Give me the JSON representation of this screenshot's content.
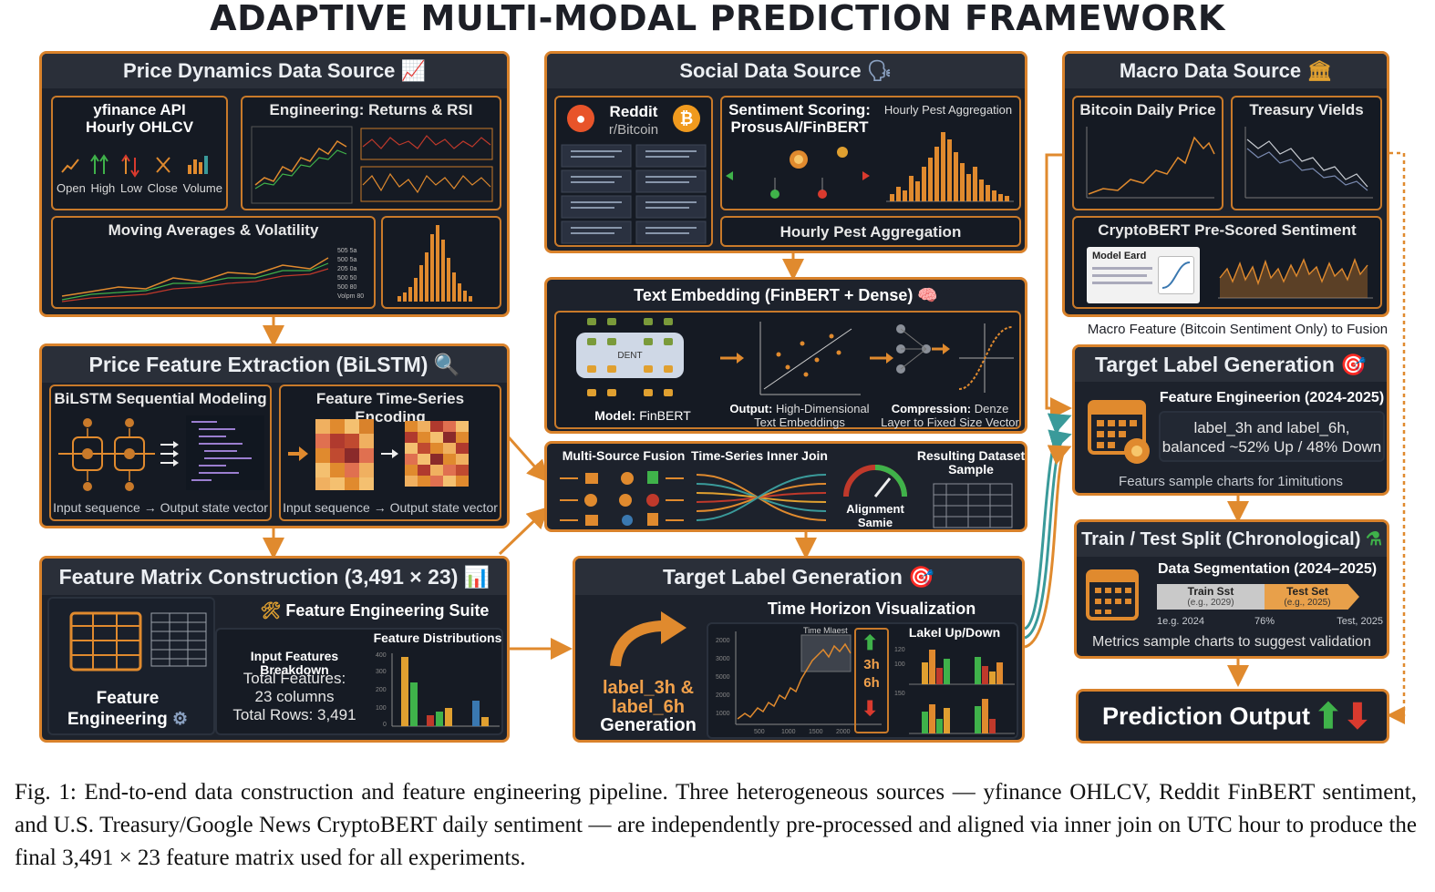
{
  "title": "ADAPTIVE MULTI-MODAL PREDICTION FRAMEWORK",
  "price_source": {
    "title": "Price Dynamics Data Source",
    "icon": "chart-up-icon",
    "yfinance_title": "yfinance API\nHourly OHLCV",
    "ohlcv": [
      "Open",
      "High",
      "Low",
      "Close",
      "Volume"
    ],
    "engineering_title": "Engineering: Returns & RSI",
    "ma_title": "Moving Averages & Volatility"
  },
  "social_source": {
    "title": "Social Data Source",
    "icon": "speaking-head-icon",
    "reddit_title": "Reddit",
    "reddit_sub": "r/Bitcoin",
    "sentiment_title": "Sentiment Scoring:\nProsusAI/FinBERT",
    "hourly_chart_title": "Hourly Pest Aggregation",
    "hourly_bar_label": "Hourly Pest Aggregation"
  },
  "macro_source": {
    "title": "Macro Data Source",
    "icon": "bank-icon",
    "btc_title": "Bitcoin Daily Price",
    "treasury_title": "Treasury Vields",
    "cryptobert_title": "CryptoBERT Pre-Scored Sentiment",
    "model_card": "Model Eard",
    "caption": "Macro Feature (Bitcoin Sentiment Only) to Fusion"
  },
  "text_embedding": {
    "title": "Text Embedding (FinBERT + Dense)",
    "icon": "brain-icon",
    "model_label": "Model:",
    "model_value": "FinBERT",
    "dent": "DENT",
    "output_label": "Output:",
    "output_value": "High-Dimensional Text Embeddings",
    "compression_label": "Compression:",
    "compression_value": "Denze Layer to Fixed Size Vector"
  },
  "fusion": {
    "multi_source": "Multi-Source Fusion",
    "inner_join": "Time-Series Inner Join",
    "alignment": "Alignment\nSamie",
    "dataset_sample": "Resulting Dataset\nSample"
  },
  "price_feature": {
    "title": "Price Feature Extraction (BiLSTM)",
    "icon": "magnifier-icon",
    "bilstm_title": "BiLSTM Sequential Modeling",
    "encoding_title": "Feature Time-Series Encoding",
    "bilstm_caption": "Input sequence → Output state vector",
    "encoding_caption": "Input sequence → Output state vector"
  },
  "feature_matrix": {
    "title": "Feature Matrix Construction (3,491 × 23)",
    "icon": "bar-chart-icon",
    "suite_title": "Feature Engineering Suite",
    "feature_engineering": "Feature\nEngineering",
    "breakdown_title": "Input Features Breakdown",
    "total_features": "Total Features:",
    "columns": "23 columns",
    "total_rows": "Total Rows: 3,491",
    "distributions_title": "Feature Distributions"
  },
  "target_center": {
    "title": "Target Label Generation",
    "icon": "target-icon",
    "label_gen": "label_3h &\nlabel_6h",
    "generation": "Generation",
    "horizon_title": "Time Horizon Visualization",
    "time_mlaest": "Time Mlaest",
    "h3": "3h",
    "h6": "6h",
    "updown_title": "Lakel Up/Down"
  },
  "target_right": {
    "title": "Target Label Generation",
    "icon": "target-icon",
    "engineering_title": "Feature Engineerion (2024-2025)",
    "labels_text": "label_3h and label_6h,\nbalanced ~52% Up / 48% Down",
    "footer": "Featurs sample charts for 1imitutions"
  },
  "split": {
    "title": "Train / Test Split (Chronological)",
    "icon": "flask-icon",
    "segmentation_title": "Data Segmentation (2024–2025)",
    "train_label": "Train Sst",
    "train_sub": "(e.g., 2029)",
    "test_label": "Test Set",
    "test_sub": "(e.g., 2025)",
    "tick_left": "1e.g. 2024",
    "tick_mid": "76%",
    "tick_right": "Test, 2025",
    "footer": "Metrics sample charts to suggest validation"
  },
  "prediction": {
    "title": "Prediction Output",
    "up_icon": "arrow-up-icon",
    "down_icon": "arrow-down-icon"
  },
  "caption": "Fig. 1: End-to-end data construction and feature engineering pipeline. Three heterogeneous sources — yfinance OHLCV, Reddit FinBERT sentiment, and U.S. Treasury/Google News CryptoBERT daily sentiment — are independently pre-processed and aligned via inner join on UTC hour to produce the final 3,491 × 23 feature matrix used for all experiments.",
  "colors": {
    "panel_bg": "#1d222c",
    "border": "#d9822b",
    "accent": "#f0a04b",
    "teal": "#3a9a9a",
    "up": "#3fb24a",
    "down": "#d93a2e"
  }
}
